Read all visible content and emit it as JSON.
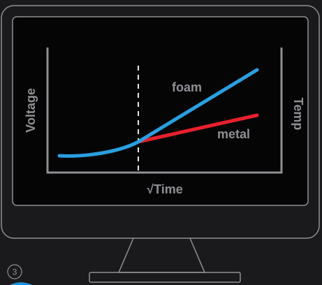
{
  "chart_data": {
    "type": "line",
    "ylabel": "Voltage",
    "ylabel_right": "Temp",
    "xlabel": "√Time",
    "series": [
      {
        "name": "foam",
        "color": "#2a9fe0"
      },
      {
        "name": "metal",
        "color": "#e8202c"
      }
    ],
    "grid": false
  },
  "step": {
    "number": "3"
  },
  "colors": {
    "background": "#1a1a1c",
    "outline": "#8f9094",
    "foam": "#2a9fe0",
    "metal": "#e8202c"
  }
}
